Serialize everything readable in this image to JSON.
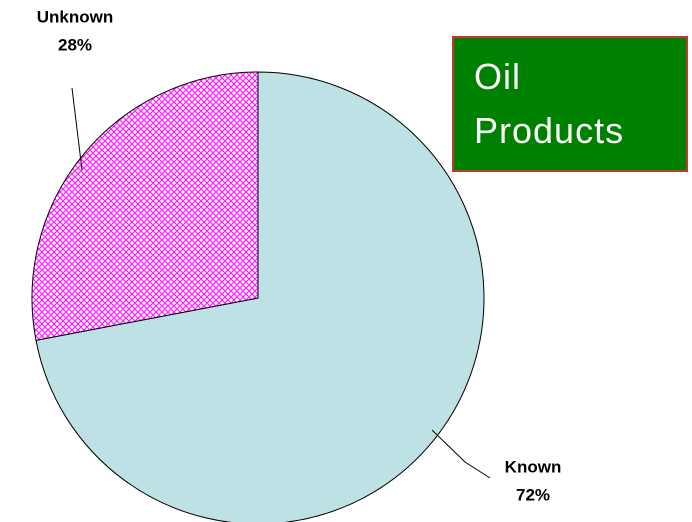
{
  "chart_data": {
    "type": "pie",
    "title": "Oil Products",
    "categories": [
      "Known",
      "Unknown"
    ],
    "values": [
      72,
      28
    ],
    "value_labels": [
      "72%",
      "28%"
    ],
    "colors": [
      "#bde1e4",
      "#ff22ff"
    ],
    "hatch": [
      false,
      true
    ]
  }
}
